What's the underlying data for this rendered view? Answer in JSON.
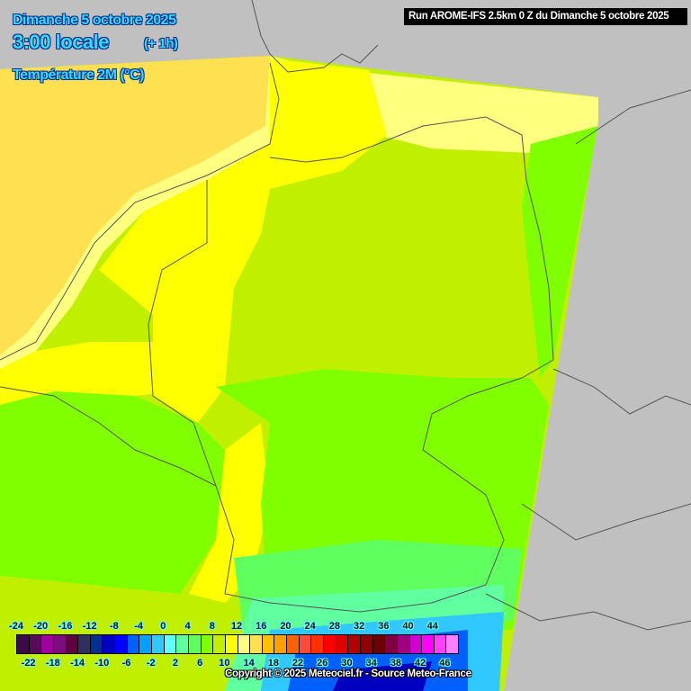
{
  "header": {
    "date": "Dimanche 5 octobre 2025",
    "time": "3:00 locale",
    "offset": "(+ 1h)",
    "parameter": "Température 2M (°C)",
    "run_info": "Run AROME-IFS 2.5km 0 Z du Dimanche 5 octobre 2025"
  },
  "legend": {
    "unit": "°C",
    "min": -24,
    "step": 2,
    "top_labels": [
      "-24",
      "-20",
      "-16",
      "-12",
      "-8",
      "-4",
      "0",
      "4",
      "8",
      "12",
      "16",
      "20",
      "24",
      "28",
      "32",
      "36",
      "40",
      "44"
    ],
    "bottom_labels": [
      "-22",
      "-18",
      "-14",
      "-10",
      "-6",
      "-2",
      "2",
      "6",
      "10",
      "14",
      "18",
      "22",
      "26",
      "30",
      "34",
      "38",
      "42",
      "46"
    ],
    "colors": [
      "#3c0a46",
      "#5a0a5a",
      "#a000a0",
      "#800a80",
      "#600040",
      "#303060",
      "#003090",
      "#0000c0",
      "#0000ff",
      "#0060ff",
      "#00a0ff",
      "#30c8ff",
      "#60ffff",
      "#60ffa0",
      "#60ff60",
      "#80ff00",
      "#c0f000",
      "#ffff00",
      "#ffff80",
      "#ffe050",
      "#ffc000",
      "#ffa000",
      "#ff6000",
      "#ff4a3a",
      "#ff3000",
      "#ff0000",
      "#e00000",
      "#b00000",
      "#900000",
      "#700000",
      "#800040",
      "#a00080",
      "#d000d0",
      "#ff00ff",
      "#ff40ff",
      "#ff80ff"
    ]
  },
  "copyright": "Copyright © 2025 Meteociel.fr - Source Meteo-France",
  "colors": {
    "no_data": "#c0c0c0",
    "borders": "#555555",
    "title_text": "#33ddff"
  }
}
